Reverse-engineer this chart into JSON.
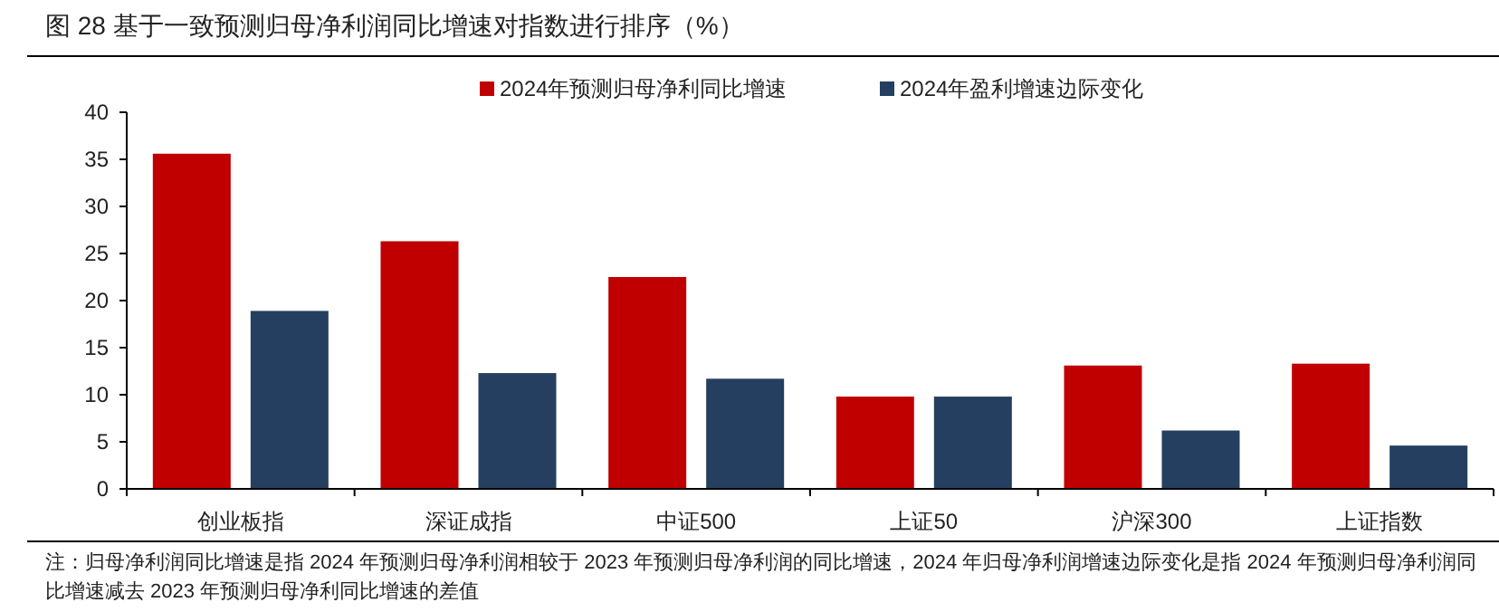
{
  "chart_data": {
    "type": "bar",
    "title": "图 28  基于一致预测归母净利润同比增速对指数进行排序（%）",
    "categories": [
      "创业板指",
      "深证成指",
      "中证500",
      "上证50",
      "沪深300",
      "上证指数"
    ],
    "series": [
      {
        "name": "2024年预测归母净利同比增速",
        "color": "#c00000",
        "values": [
          35.6,
          26.3,
          22.5,
          9.8,
          13.1,
          13.3
        ]
      },
      {
        "name": "2024年盈利增速边际变化",
        "color": "#243f60",
        "values": [
          18.9,
          12.3,
          11.7,
          9.8,
          6.2,
          4.6
        ]
      }
    ],
    "ylim": [
      0,
      40
    ],
    "yticks": [
      0,
      5,
      10,
      15,
      20,
      25,
      30,
      35,
      40
    ],
    "grid": false,
    "legend": "top",
    "annotations": [
      "注：归母净利润同比增速是指 2024 年预测归母净利润相较于 2023 年预测归母净利润的同比增速，2024 年归母净利润增速边际变化是指 2024 年预测归母净利润同比增速减去 2023 年预测归母净利同比增速的差值"
    ]
  }
}
